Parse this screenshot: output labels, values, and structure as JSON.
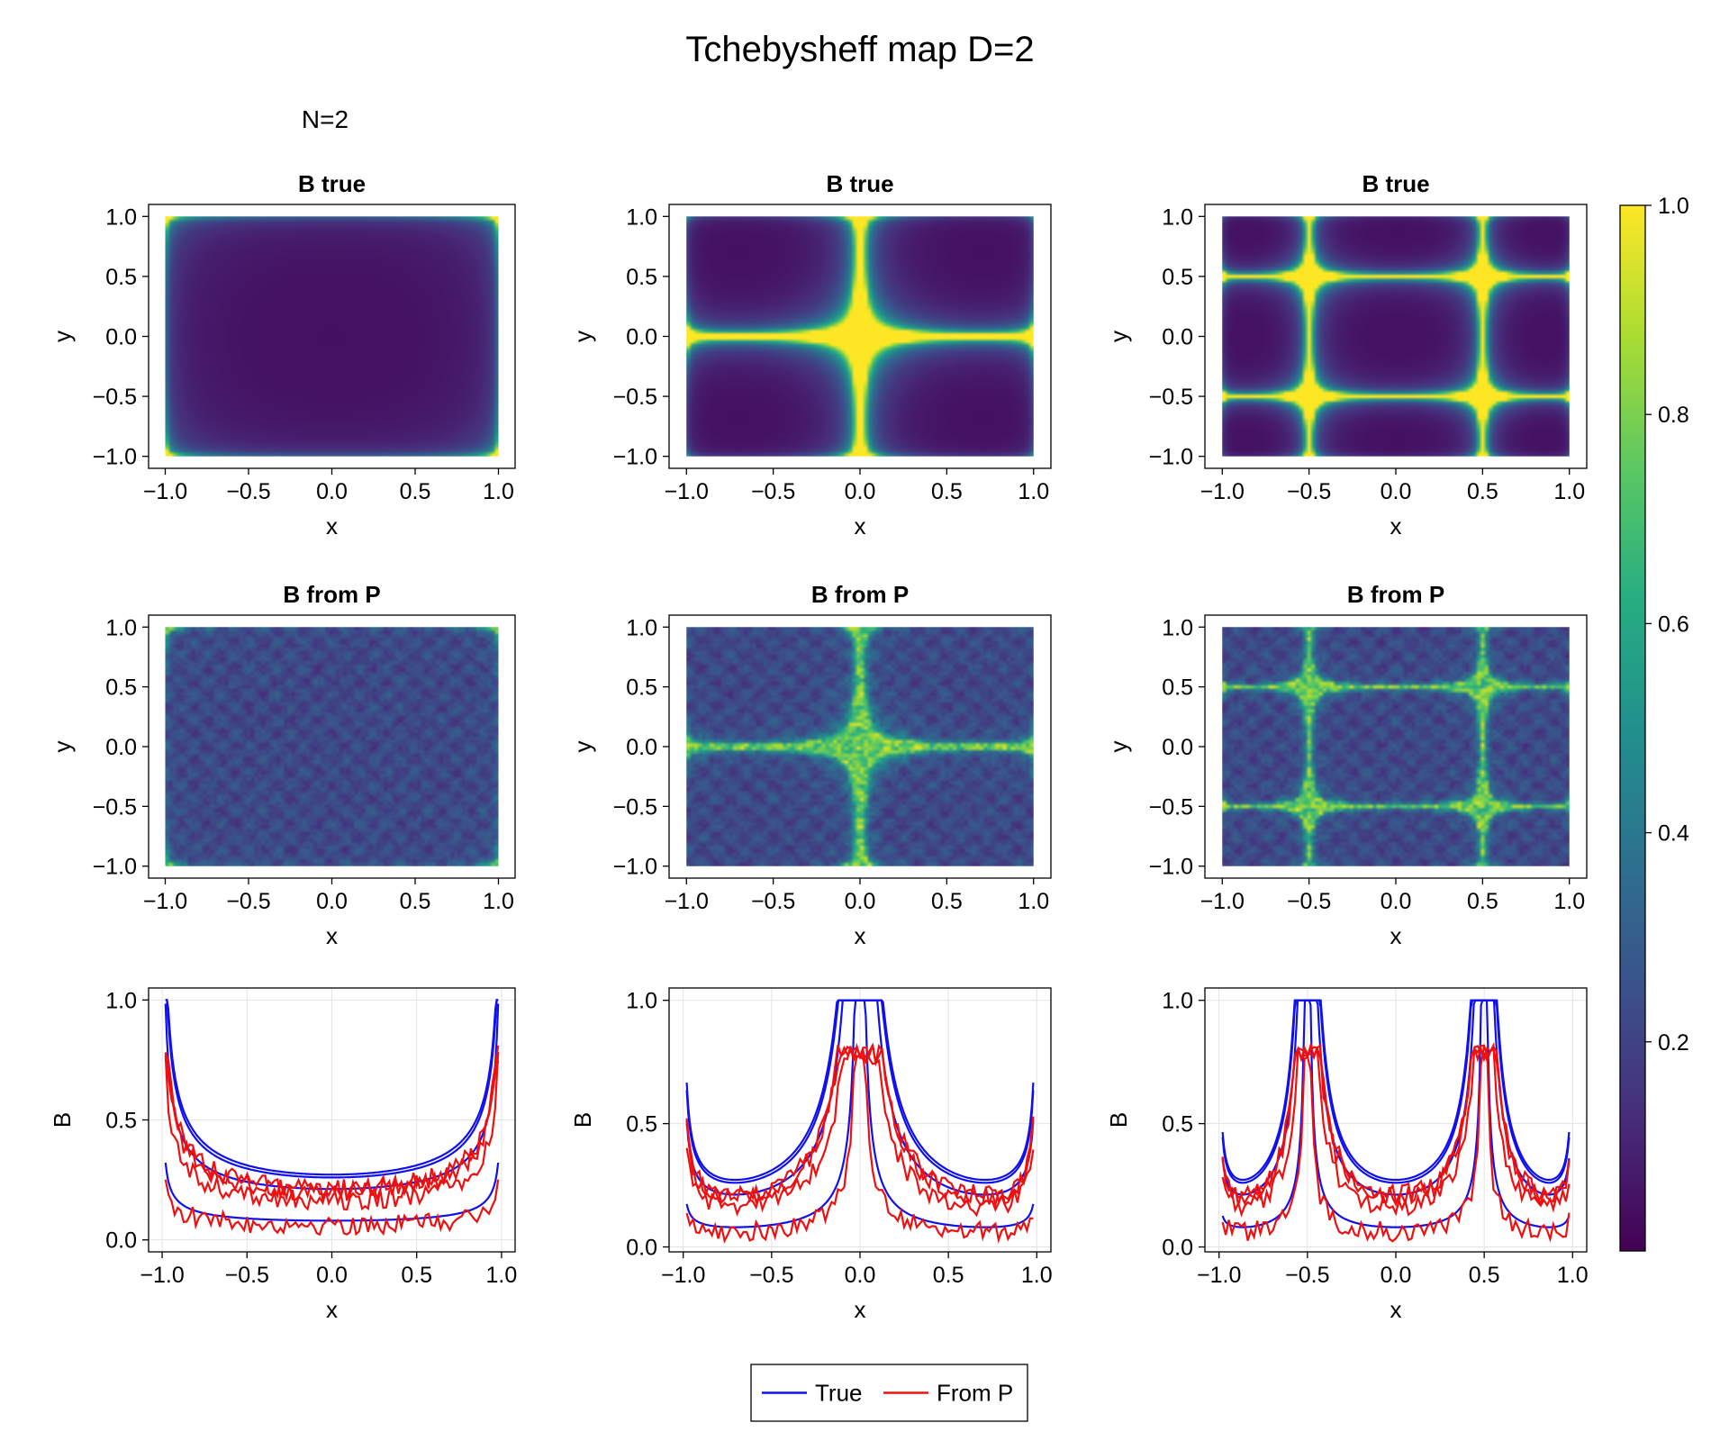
{
  "figure": {
    "title": "Tchebysheff map D=2",
    "subtitle": "N=2",
    "colors": {
      "true": "#1010ee",
      "from_p": "#ee1010",
      "grid": "#e3e3e3"
    }
  },
  "colorbar": {
    "colormap": "viridis",
    "range": [
      0.0,
      1.0
    ],
    "ticks": [
      1.0,
      0.8,
      0.6,
      0.4,
      0.2
    ],
    "tick_labels": [
      "1.0",
      "0.8",
      "0.6",
      "0.4",
      "0.2"
    ]
  },
  "legend": {
    "entries": [
      {
        "name": "True",
        "color": "#1010ee"
      },
      {
        "name": "From P",
        "color": "#ee1010"
      }
    ]
  },
  "chart_data": [
    {
      "id": "r1c1",
      "type": "heatmap",
      "title": "B true",
      "xlabel": "x",
      "ylabel": "y",
      "xlim": [
        -1.1,
        1.1
      ],
      "ylim": [
        -1.1,
        1.1
      ],
      "field": "true",
      "order": 1,
      "xticks": [
        "−1.0",
        "−0.5",
        "0.0",
        "0.5",
        "1.0"
      ],
      "yticks": [
        "1.0",
        "0.5",
        "0.0",
        "−0.5",
        "−1.0"
      ]
    },
    {
      "id": "r1c2",
      "type": "heatmap",
      "title": "B true",
      "xlabel": "x",
      "ylabel": "y",
      "xlim": [
        -1.1,
        1.1
      ],
      "ylim": [
        -1.1,
        1.1
      ],
      "field": "true",
      "order": 2,
      "xticks": [
        "−1.0",
        "−0.5",
        "0.0",
        "0.5",
        "1.0"
      ],
      "yticks": [
        "1.0",
        "0.5",
        "0.0",
        "−0.5",
        "−1.0"
      ]
    },
    {
      "id": "r1c3",
      "type": "heatmap",
      "title": "B true",
      "xlabel": "x",
      "ylabel": "y",
      "xlim": [
        -1.1,
        1.1
      ],
      "ylim": [
        -1.1,
        1.1
      ],
      "field": "true",
      "order": 3,
      "xticks": [
        "−1.0",
        "−0.5",
        "0.0",
        "0.5",
        "1.0"
      ],
      "yticks": [
        "1.0",
        "0.5",
        "0.0",
        "−0.5",
        "−1.0"
      ]
    },
    {
      "id": "r2c1",
      "type": "heatmap",
      "title": "B from P",
      "xlabel": "x",
      "ylabel": "y",
      "xlim": [
        -1.1,
        1.1
      ],
      "ylim": [
        -1.1,
        1.1
      ],
      "field": "from_p",
      "order": 1,
      "xticks": [
        "−1.0",
        "−0.5",
        "0.0",
        "0.5",
        "1.0"
      ],
      "yticks": [
        "1.0",
        "0.5",
        "0.0",
        "−0.5",
        "−1.0"
      ]
    },
    {
      "id": "r2c2",
      "type": "heatmap",
      "title": "B from P",
      "xlabel": "x",
      "ylabel": "y",
      "xlim": [
        -1.1,
        1.1
      ],
      "ylim": [
        -1.1,
        1.1
      ],
      "field": "from_p",
      "order": 2,
      "xticks": [
        "−1.0",
        "−0.5",
        "0.0",
        "0.5",
        "1.0"
      ],
      "yticks": [
        "1.0",
        "0.5",
        "0.0",
        "−0.5",
        "−1.0"
      ]
    },
    {
      "id": "r2c3",
      "type": "heatmap",
      "title": "B from P",
      "xlabel": "x",
      "ylabel": "y",
      "xlim": [
        -1.1,
        1.1
      ],
      "ylim": [
        -1.1,
        1.1
      ],
      "field": "from_p",
      "order": 3,
      "xticks": [
        "−1.0",
        "−0.5",
        "0.0",
        "0.5",
        "1.0"
      ],
      "yticks": [
        "1.0",
        "0.5",
        "0.0",
        "−0.5",
        "−1.0"
      ]
    },
    {
      "id": "r3c1",
      "type": "line",
      "title": "",
      "xlabel": "x",
      "ylabel": "B",
      "xlim": [
        -1.08,
        1.08
      ],
      "ylim": [
        -0.05,
        1.05
      ],
      "order": 1,
      "xticks": [
        "−1.0",
        "−0.5",
        "0.0",
        "0.5",
        "1.0"
      ],
      "yticks": [
        "1.0",
        "0.5",
        "0.0"
      ],
      "series": [
        {
          "name": "True",
          "cuts": [
            0.0,
            0.5,
            1.0,
            1.5
          ]
        },
        {
          "name": "From P",
          "cuts": [
            0.0,
            0.5,
            1.0,
            1.5
          ]
        }
      ]
    },
    {
      "id": "r3c2",
      "type": "line",
      "title": "",
      "xlabel": "x",
      "ylabel": "B",
      "xlim": [
        -1.08,
        1.08
      ],
      "ylim": [
        -0.02,
        1.05
      ],
      "order": 2,
      "xticks": [
        "−1.0",
        "−0.5",
        "0.0",
        "0.5",
        "1.0"
      ],
      "yticks": [
        "1.0",
        "0.5",
        "0.0"
      ],
      "series": [
        {
          "name": "True",
          "cuts": [
            0.0,
            0.5,
            1.0,
            1.5
          ]
        },
        {
          "name": "From P",
          "cuts": [
            0.0,
            0.5,
            1.0,
            1.5
          ]
        }
      ]
    },
    {
      "id": "r3c3",
      "type": "line",
      "title": "",
      "xlabel": "x",
      "ylabel": "B",
      "xlim": [
        -1.08,
        1.08
      ],
      "ylim": [
        -0.02,
        1.05
      ],
      "order": 3,
      "xticks": [
        "−1.0",
        "−0.5",
        "0.0",
        "0.5",
        "1.0"
      ],
      "yticks": [
        "1.0",
        "0.5",
        "0.0"
      ],
      "series": [
        {
          "name": "True",
          "cuts": [
            0.0,
            0.5,
            1.0,
            1.5
          ]
        },
        {
          "name": "From P",
          "cuts": [
            0.0,
            0.5,
            1.0,
            1.5
          ]
        }
      ]
    }
  ]
}
